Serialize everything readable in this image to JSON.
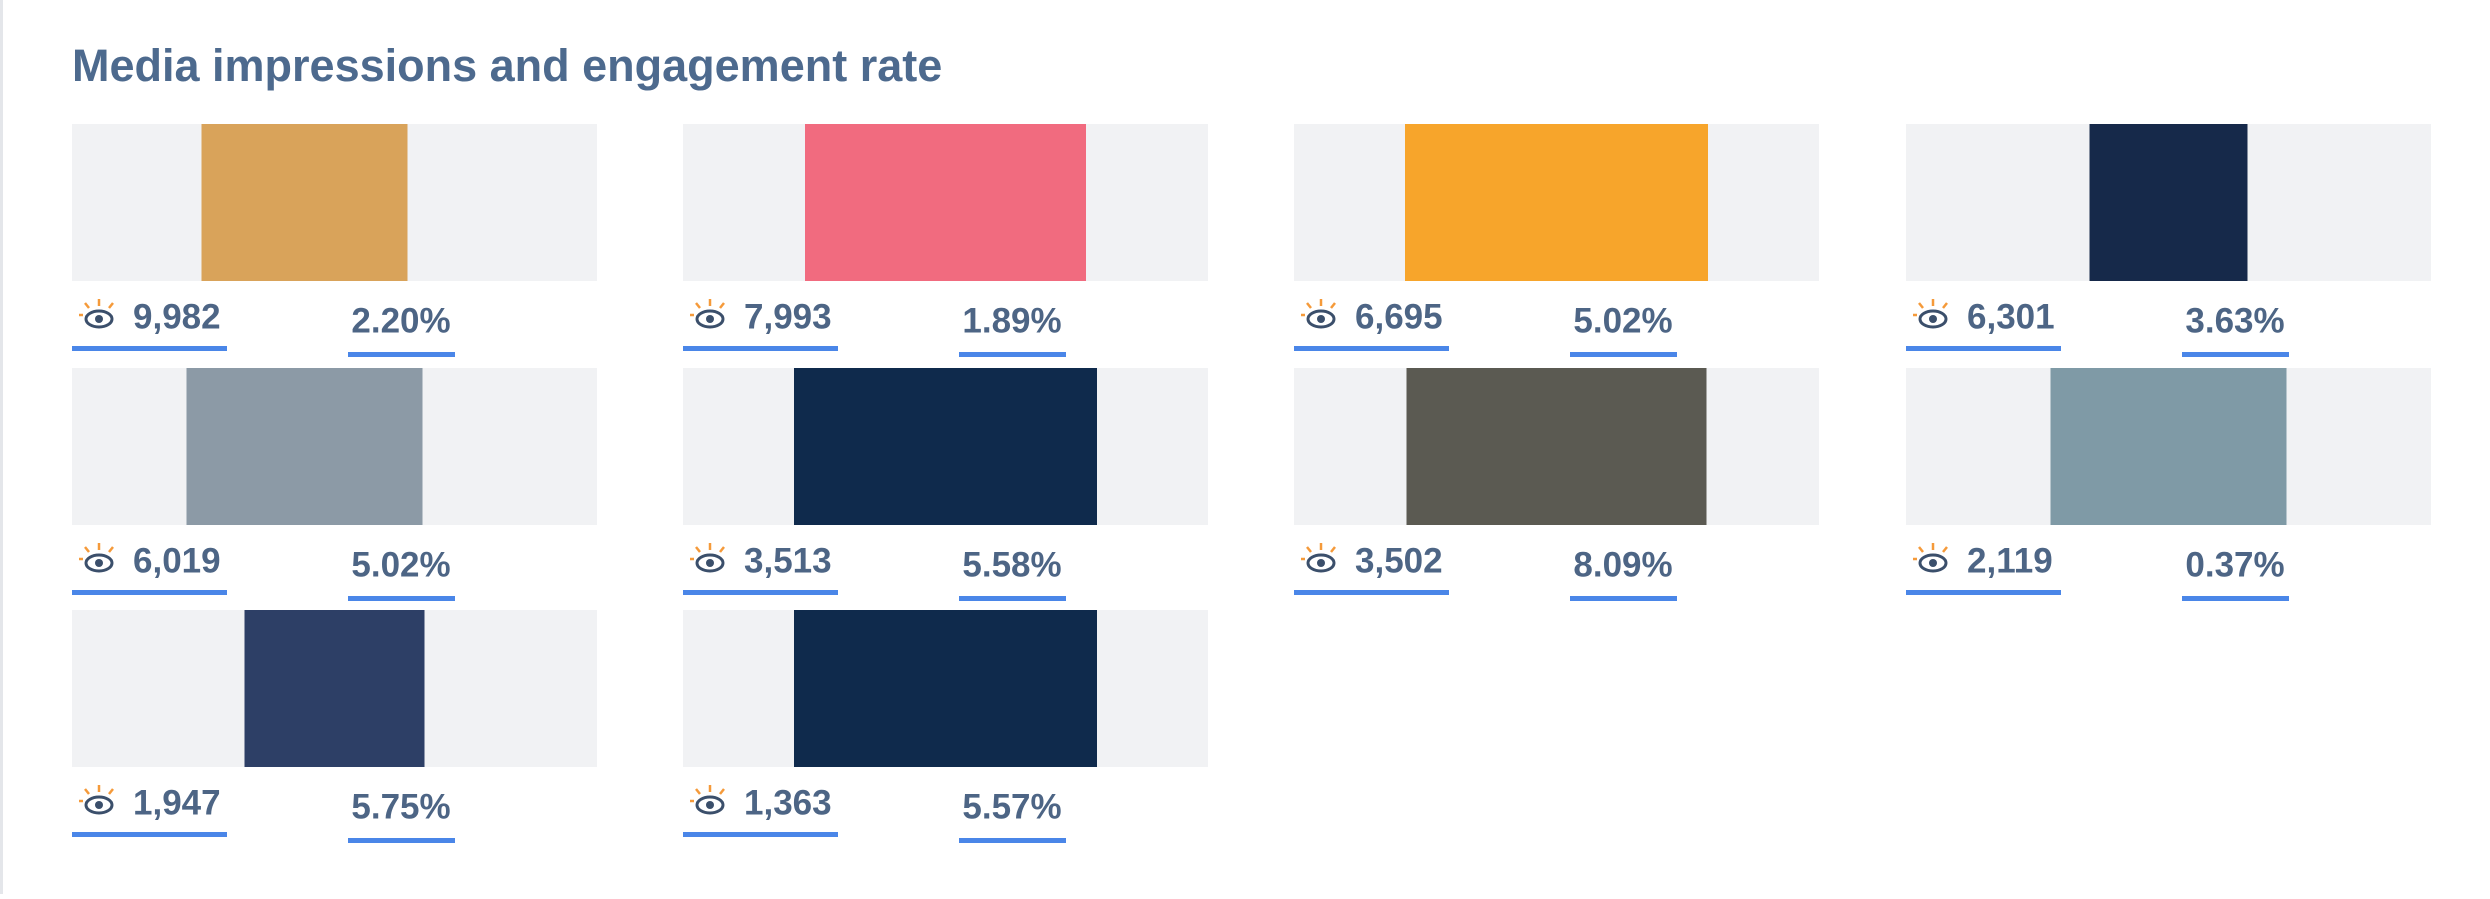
{
  "header": {
    "title": "Media impressions and engagement rate"
  },
  "items": [
    {
      "impressions": "9,982",
      "rate": "2.20%"
    },
    {
      "impressions": "7,993",
      "rate": "1.89%"
    },
    {
      "impressions": "6,695",
      "rate": "5.02%"
    },
    {
      "impressions": "6,301",
      "rate": "3.63%"
    },
    {
      "impressions": "6,019",
      "rate": "5.02%"
    },
    {
      "impressions": "3,513",
      "rate": "5.58%"
    },
    {
      "impressions": "3,502",
      "rate": "8.09%"
    },
    {
      "impressions": "2,119",
      "rate": "0.37%"
    },
    {
      "impressions": "1,947",
      "rate": "5.75%"
    },
    {
      "impressions": "1,363",
      "rate": "5.57%"
    }
  ]
}
